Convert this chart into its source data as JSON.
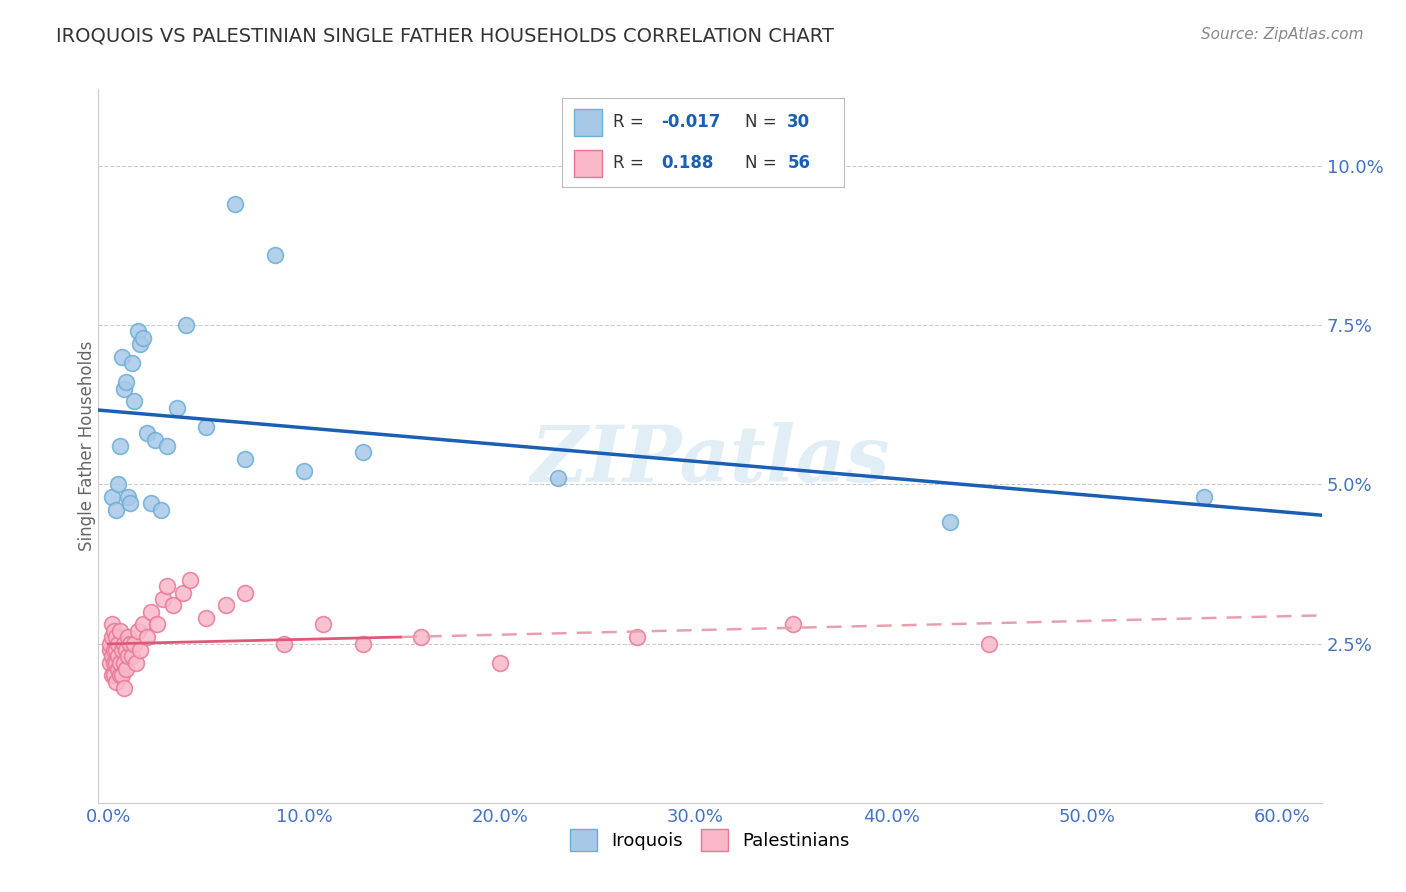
{
  "title": "IROQUOIS VS PALESTINIAN SINGLE FATHER HOUSEHOLDS CORRELATION CHART",
  "source": "Source: ZipAtlas.com",
  "ylabel": "Single Father Households",
  "xlim": [
    -0.005,
    0.62
  ],
  "ylim": [
    0.0,
    0.112
  ],
  "xticks": [
    0.0,
    0.1,
    0.2,
    0.3,
    0.4,
    0.5,
    0.6
  ],
  "xticklabels": [
    "0.0%",
    "10.0%",
    "20.0%",
    "30.0%",
    "40.0%",
    "50.0%",
    "60.0%"
  ],
  "yticks": [
    0.025,
    0.05,
    0.075,
    0.1
  ],
  "yticklabels": [
    "2.5%",
    "5.0%",
    "7.5%",
    "10.0%"
  ],
  "iroquois_color": "#a8c8e8",
  "iroquois_edge_color": "#6baed6",
  "palestinians_color": "#f8b8c8",
  "palestinians_edge_color": "#e87898",
  "iroquois_line_color": "#1a5fb4",
  "palestinians_solid_color": "#e05878",
  "palestinians_dash_color": "#e8a0b0",
  "background_color": "#ffffff",
  "grid_color": "#cccccc",
  "tick_color": "#4472c4",
  "watermark": "ZIPatlas",
  "legend_box_color": "#dddddd",
  "iroquois_x": [
    0.002,
    0.004,
    0.005,
    0.006,
    0.007,
    0.008,
    0.009,
    0.01,
    0.011,
    0.012,
    0.013,
    0.015,
    0.016,
    0.018,
    0.02,
    0.022,
    0.024,
    0.027,
    0.03,
    0.035,
    0.04,
    0.05,
    0.065,
    0.07,
    0.085,
    0.1,
    0.13,
    0.23,
    0.43,
    0.56
  ],
  "iroquois_y": [
    0.048,
    0.046,
    0.05,
    0.056,
    0.07,
    0.065,
    0.066,
    0.048,
    0.047,
    0.069,
    0.063,
    0.074,
    0.072,
    0.073,
    0.058,
    0.047,
    0.057,
    0.046,
    0.056,
    0.062,
    0.075,
    0.059,
    0.094,
    0.054,
    0.086,
    0.052,
    0.055,
    0.051,
    0.044,
    0.048
  ],
  "palestinians_x": [
    0.001,
    0.001,
    0.001,
    0.002,
    0.002,
    0.002,
    0.002,
    0.003,
    0.003,
    0.003,
    0.003,
    0.004,
    0.004,
    0.004,
    0.004,
    0.005,
    0.005,
    0.005,
    0.006,
    0.006,
    0.006,
    0.007,
    0.007,
    0.008,
    0.008,
    0.008,
    0.009,
    0.009,
    0.01,
    0.01,
    0.011,
    0.012,
    0.013,
    0.014,
    0.015,
    0.016,
    0.018,
    0.02,
    0.022,
    0.025,
    0.028,
    0.03,
    0.033,
    0.038,
    0.042,
    0.05,
    0.06,
    0.07,
    0.09,
    0.11,
    0.13,
    0.16,
    0.2,
    0.27,
    0.35,
    0.45
  ],
  "palestinians_y": [
    0.024,
    0.022,
    0.025,
    0.02,
    0.023,
    0.026,
    0.028,
    0.02,
    0.022,
    0.024,
    0.027,
    0.019,
    0.022,
    0.024,
    0.026,
    0.021,
    0.023,
    0.025,
    0.02,
    0.022,
    0.027,
    0.02,
    0.024,
    0.022,
    0.025,
    0.018,
    0.021,
    0.024,
    0.023,
    0.026,
    0.025,
    0.023,
    0.025,
    0.022,
    0.027,
    0.024,
    0.028,
    0.026,
    0.03,
    0.028,
    0.032,
    0.034,
    0.031,
    0.033,
    0.035,
    0.029,
    0.031,
    0.033,
    0.025,
    0.028,
    0.025,
    0.026,
    0.022,
    0.026,
    0.028,
    0.025
  ],
  "pal_line_x_start": 0.0,
  "pal_line_x_solid_end": 0.15,
  "pal_line_x_end": 0.62,
  "iroq_line_y": 0.047
}
